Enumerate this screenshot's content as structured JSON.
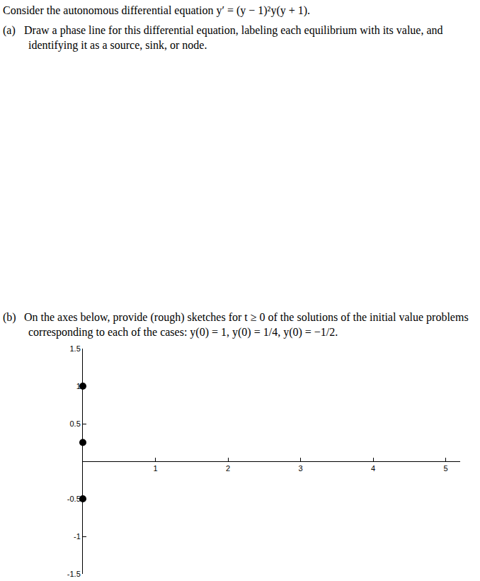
{
  "document": {
    "statement": "Consider the autonomous differential equation y′ = (y − 1)²y(y + 1).",
    "parts": [
      {
        "label": "(a)",
        "text": "Draw a phase line for this differential equation, labeling each equilibrium with its value, and identifying it as a source, sink, or node."
      },
      {
        "label": "(b)",
        "text": "On the axes below, provide (rough) sketches for t ≥ 0 of the solutions of the initial value problems corresponding to each of the cases: y(0) = 1, y(0) = 1/4, y(0) = −1/2."
      }
    ]
  },
  "chart_data": {
    "type": "scatter",
    "x": [
      0,
      0,
      0
    ],
    "values": [
      1,
      0.25,
      -0.5
    ],
    "color": "#000000",
    "marker": "circle",
    "xlim": [
      0,
      5.2
    ],
    "ylim": [
      -1.5,
      1.5
    ],
    "xticks": [
      1,
      2,
      3,
      4,
      5
    ],
    "yticks": [
      -1.5,
      -1,
      -0.5,
      0.5,
      1,
      1.5
    ],
    "grid": false
  }
}
